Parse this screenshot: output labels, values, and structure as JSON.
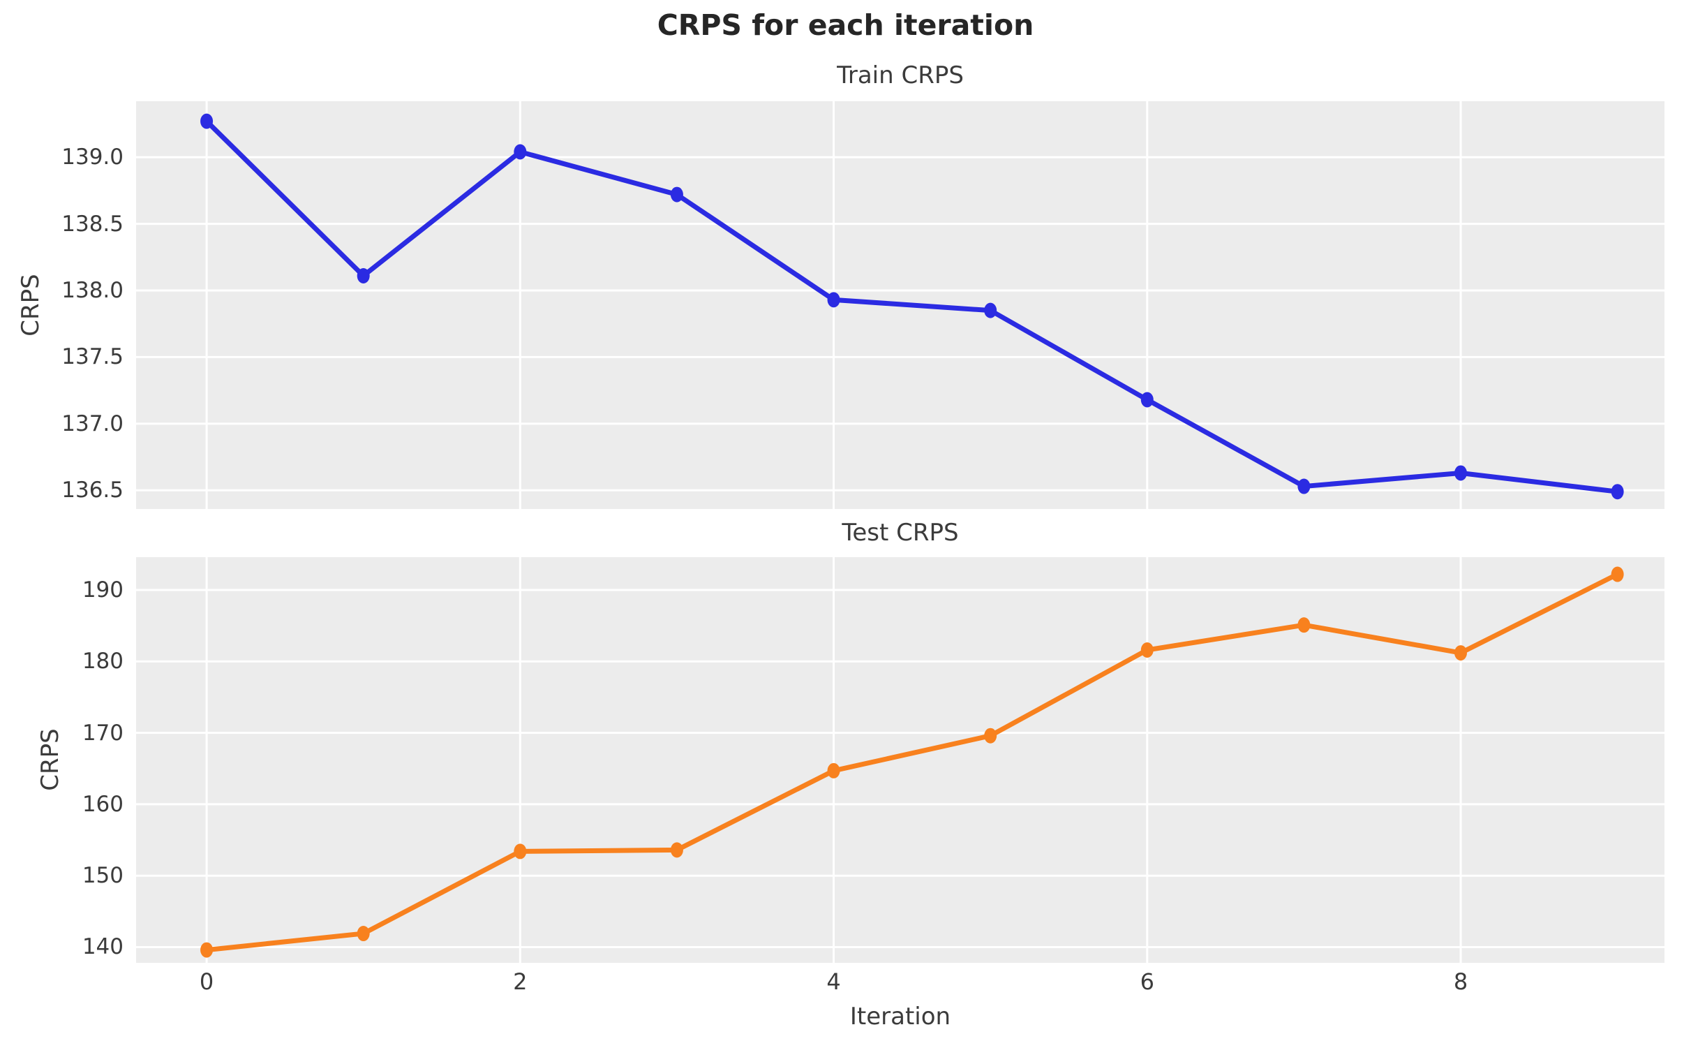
{
  "figure": {
    "suptitle": "CRPS for each iteration",
    "xlabel": "Iteration"
  },
  "colors": {
    "figure_bg": "#FFFFFF",
    "plot_bg": "#ECECEC",
    "grid": "#FFFFFF",
    "train_series": "#2B2BE2",
    "test_series": "#F8811E",
    "tick_text": "#3B3B3B",
    "title_text": "#262626"
  },
  "chart_data": [
    {
      "type": "line",
      "title": "Train CRPS",
      "ylabel": "CRPS",
      "series": [
        {
          "name": "train",
          "x": [
            0,
            1,
            2,
            3,
            4,
            5,
            6,
            7,
            8,
            9
          ],
          "values": [
            139.27,
            138.11,
            139.04,
            138.72,
            137.93,
            137.85,
            137.18,
            136.53,
            136.63,
            136.49
          ],
          "color": "#2B2BE2"
        }
      ],
      "xlim": [
        -0.45,
        9.3
      ],
      "ylim": [
        136.36,
        139.42
      ],
      "xticks": [
        0,
        2,
        4,
        6,
        8
      ],
      "xtick_labels": [],
      "yticks": [
        136.5,
        137.0,
        137.5,
        138.0,
        138.5,
        139.0
      ],
      "ytick_labels": [
        "136.5",
        "137.0",
        "137.5",
        "138.0",
        "138.5",
        "139.0"
      ],
      "grid": true,
      "legend": "none",
      "marker": "circle"
    },
    {
      "type": "line",
      "title": "Test CRPS",
      "ylabel": "CRPS",
      "xlabel": "Iteration",
      "series": [
        {
          "name": "test",
          "x": [
            0,
            1,
            2,
            3,
            4,
            5,
            6,
            7,
            8,
            9
          ],
          "values": [
            139.6,
            141.9,
            153.4,
            153.6,
            164.7,
            169.6,
            181.6,
            185.1,
            181.2,
            192.2
          ],
          "color": "#F8811E"
        }
      ],
      "xlim": [
        -0.45,
        9.3
      ],
      "ylim": [
        137.8,
        194.6
      ],
      "xticks": [
        0,
        2,
        4,
        6,
        8
      ],
      "xtick_labels": [
        "0",
        "2",
        "4",
        "6",
        "8"
      ],
      "yticks": [
        140,
        150,
        160,
        170,
        180,
        190
      ],
      "ytick_labels": [
        "140",
        "150",
        "160",
        "170",
        "180",
        "190"
      ],
      "grid": true,
      "legend": "none",
      "marker": "circle"
    }
  ]
}
